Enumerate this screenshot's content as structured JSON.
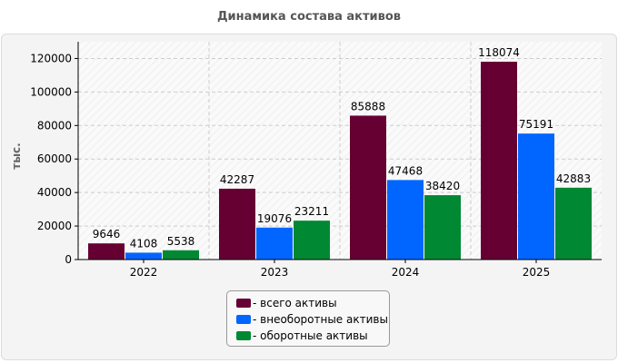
{
  "chart_data": {
    "type": "bar",
    "title": "Динамика состава активов",
    "ylabel": "тыс.",
    "xlabel": "",
    "categories": [
      "2022",
      "2023",
      "2024",
      "2025"
    ],
    "series": [
      {
        "name": "- всего активы",
        "color": "#660033",
        "values": [
          9646,
          42287,
          85888,
          118074
        ]
      },
      {
        "name": "- внеоборотные активы",
        "color": "#0066ff",
        "values": [
          4108,
          19076,
          47468,
          75191
        ]
      },
      {
        "name": "- оборотные активы",
        "color": "#008833",
        "values": [
          5538,
          23211,
          38420,
          42883
        ]
      }
    ],
    "ylim": [
      0,
      130000
    ],
    "yticks": [
      0,
      20000,
      40000,
      60000,
      80000,
      100000,
      120000
    ],
    "grid": true,
    "legend": "bottom-center"
  }
}
